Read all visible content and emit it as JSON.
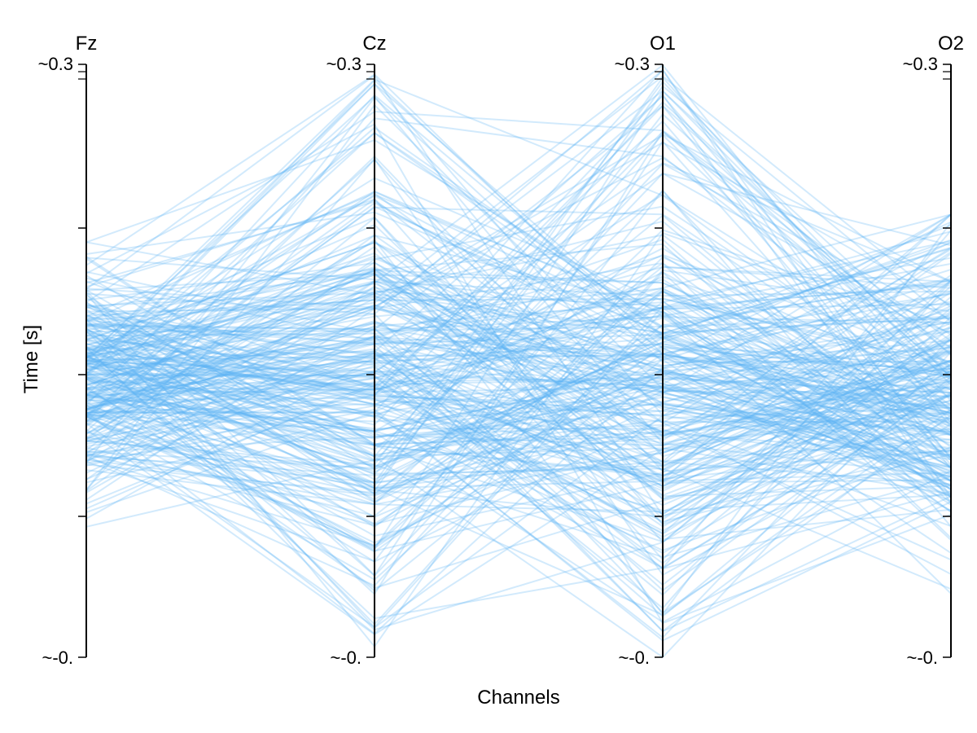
{
  "chart_data": {
    "type": "line",
    "subtype": "parallel-coordinates",
    "xlabel": "Channels",
    "ylabel": "Time [s]",
    "channels": [
      "Fz",
      "Cz",
      "O1",
      "O2"
    ],
    "axis_top_label": "~0.3",
    "axis_bottom_label": "~-0.",
    "ylim": [
      0,
      0.3
    ],
    "grid": false,
    "legend": "none",
    "line_color": "#5eb3f6",
    "num_traces": 300,
    "distribution": {
      "Fz": {
        "range": [
          0.066,
          0.21
        ],
        "center": 0.142
      },
      "Cz": {
        "range": [
          0.005,
          0.295
        ],
        "center": 0.142
      },
      "O1": {
        "range": [
          0.0,
          0.3
        ],
        "center": 0.142
      },
      "O2": {
        "range": [
          0.027,
          0.224
        ],
        "center": 0.138
      }
    }
  }
}
